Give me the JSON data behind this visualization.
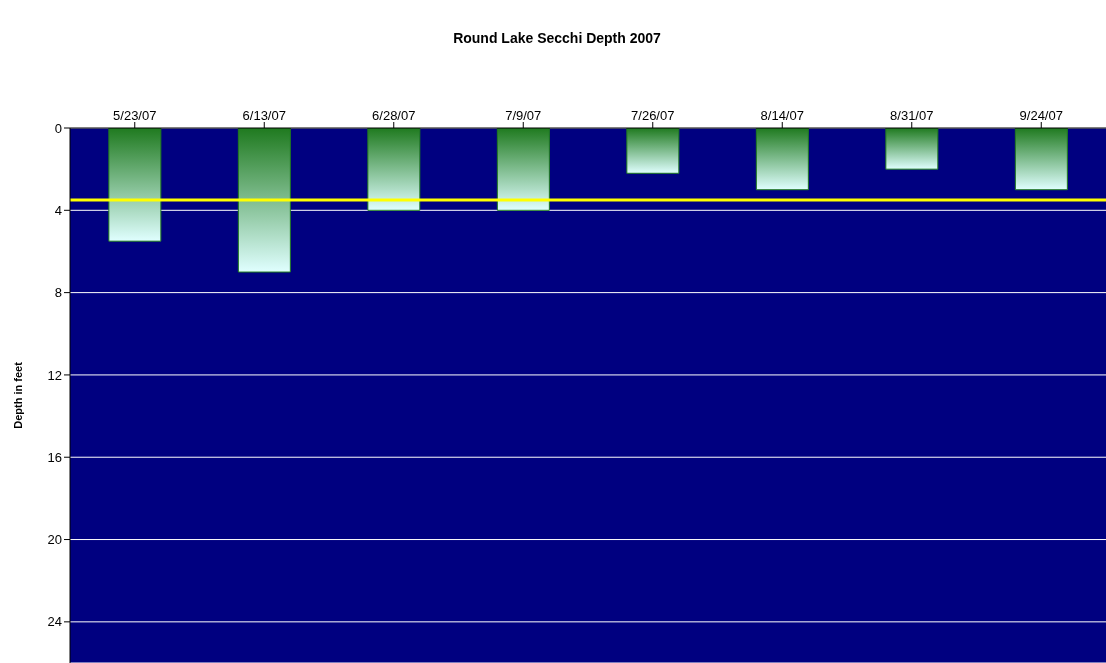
{
  "chart_data": {
    "type": "bar",
    "title": "Round Lake Secchi Depth 2007",
    "ylabel": "Depth in feet",
    "categories": [
      "5/23/07",
      "6/13/07",
      "6/28/07",
      "7/9/07",
      "7/26/07",
      "8/14/07",
      "8/31/07",
      "9/24/07"
    ],
    "values": [
      5.5,
      7,
      4,
      4,
      2.2,
      3,
      2,
      3
    ],
    "color": "#1f7a1f",
    "ylim": [
      26,
      0
    ],
    "yticks": [
      0,
      4,
      8,
      12,
      16,
      20,
      24
    ],
    "grid": "y",
    "ref_lines": [
      {
        "axis": "y",
        "value": 3.5,
        "color": "#ffff00"
      }
    ]
  }
}
